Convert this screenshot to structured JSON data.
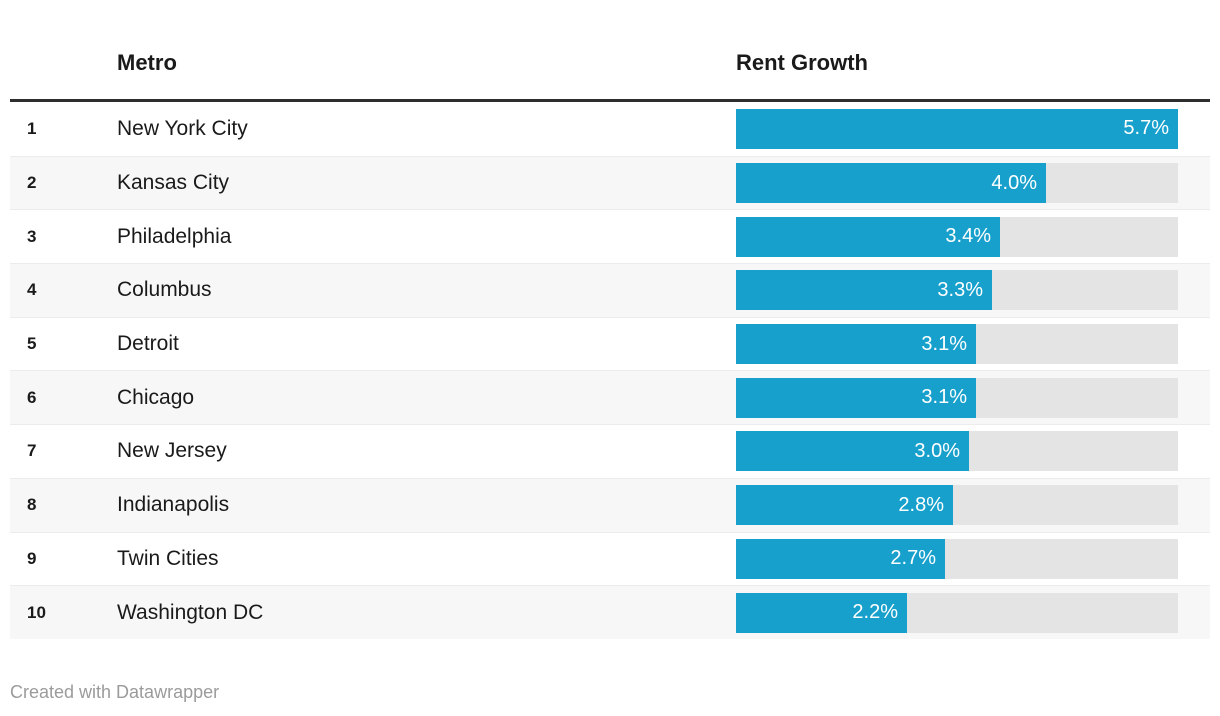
{
  "table": {
    "columns": {
      "metro": "Metro",
      "rent_growth": "Rent Growth"
    },
    "rows": [
      {
        "rank": "1",
        "metro": "New York City",
        "value": 5.7,
        "label": "5.7%"
      },
      {
        "rank": "2",
        "metro": "Kansas City",
        "value": 4.0,
        "label": "4.0%"
      },
      {
        "rank": "3",
        "metro": "Philadelphia",
        "value": 3.4,
        "label": "3.4%"
      },
      {
        "rank": "4",
        "metro": "Columbus",
        "value": 3.3,
        "label": "3.3%"
      },
      {
        "rank": "5",
        "metro": "Detroit",
        "value": 3.1,
        "label": "3.1%"
      },
      {
        "rank": "6",
        "metro": "Chicago",
        "value": 3.1,
        "label": "3.1%"
      },
      {
        "rank": "7",
        "metro": "New Jersey",
        "value": 3.0,
        "label": "3.0%"
      },
      {
        "rank": "8",
        "metro": "Indianapolis",
        "value": 2.8,
        "label": "2.8%"
      },
      {
        "rank": "9",
        "metro": "Twin Cities",
        "value": 2.7,
        "label": "2.7%"
      },
      {
        "rank": "10",
        "metro": "Washington DC",
        "value": 2.2,
        "label": "2.2%"
      }
    ]
  },
  "footer": {
    "attribution": "Created with Datawrapper"
  },
  "colors": {
    "bar": "#18a0cc",
    "bar_label": "#ffffff",
    "track": "#e4e4e4",
    "row_alt": "#f7f7f7",
    "divider": "#ececec",
    "rule": "#2e2e2e",
    "header_text": "#1a1a1a",
    "body_text": "#1a1a1a",
    "footer_text": "#9b9b9b"
  },
  "chart_data": {
    "type": "bar",
    "orientation": "horizontal",
    "columns": [
      "Metro",
      "Rent Growth"
    ],
    "categories": [
      "New York City",
      "Kansas City",
      "Philadelphia",
      "Columbus",
      "Detroit",
      "Chicago",
      "New Jersey",
      "Indianapolis",
      "Twin Cities",
      "Washington DC"
    ],
    "ranks": [
      1,
      2,
      3,
      4,
      5,
      6,
      7,
      8,
      9,
      10
    ],
    "values": [
      5.7,
      4.0,
      3.4,
      3.3,
      3.1,
      3.1,
      3.0,
      2.8,
      2.7,
      2.2
    ],
    "value_labels": [
      "5.7%",
      "4.0%",
      "3.4%",
      "3.3%",
      "3.1%",
      "3.1%",
      "3.0%",
      "2.8%",
      "2.7%",
      "2.2%"
    ],
    "xlim": [
      0,
      5.7
    ],
    "grid": false,
    "legend": false
  }
}
